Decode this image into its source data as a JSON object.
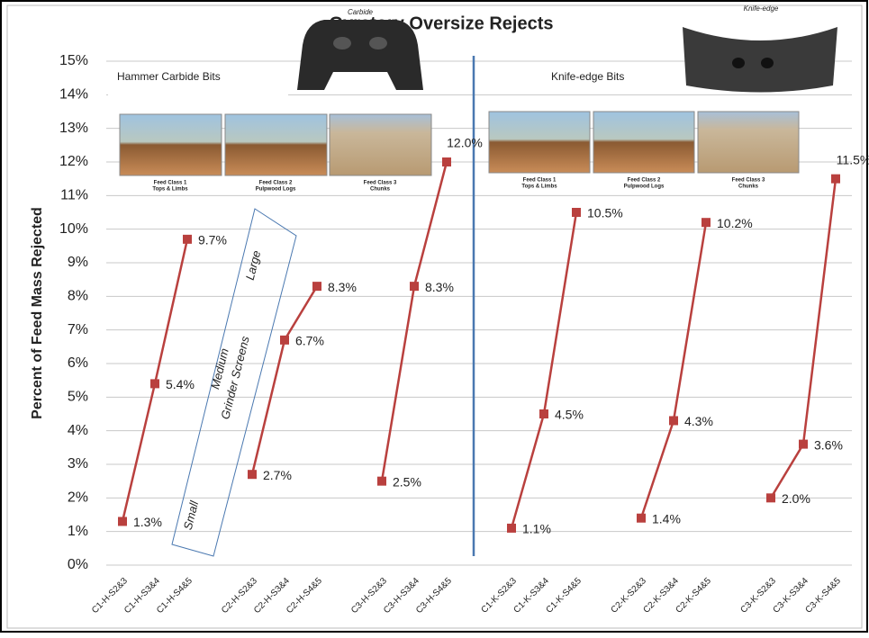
{
  "chart_data": {
    "type": "line",
    "title": "Gyratory Oversize Rejects",
    "y_label": "Percent of Feed Mass Rejected",
    "categories": [
      "C1-H-S2&3",
      "C1-H-S3&4",
      "C1-H-S4&5",
      null,
      "C2-H-S2&3",
      "C2-H-S3&4",
      "C2-H-S4&5",
      null,
      "C3-H-S2&3",
      "C3-H-S3&4",
      "C3-H-S4&5",
      null,
      "C1-K-S2&3",
      "C1-K-S3&4",
      "C1-K-S4&5",
      null,
      "C2-K-S2&3",
      "C2-K-S3&4",
      "C2-K-S4&5",
      null,
      "C3-K-S2&3",
      "C3-K-S3&4",
      "C3-K-S4&5"
    ],
    "series": [
      {
        "color": "#b9403e",
        "values": [
          1.3,
          5.4,
          9.7,
          null,
          2.7,
          6.7,
          8.3,
          null,
          2.5,
          8.3,
          12.0,
          null,
          1.1,
          4.5,
          10.5,
          null,
          1.4,
          4.3,
          10.2,
          null,
          2.0,
          3.6,
          11.5
        ],
        "value_labels": [
          "1.3%",
          "5.4%",
          "9.7%",
          null,
          "2.7%",
          "6.7%",
          "8.3%",
          null,
          "2.5%",
          "8.3%",
          "12.0%",
          null,
          "1.1%",
          "4.5%",
          "10.5%",
          null,
          "1.4%",
          "4.3%",
          "10.2%",
          null,
          "2.0%",
          "3.6%",
          "11.5%"
        ]
      }
    ],
    "ylim": [
      0,
      15
    ],
    "yticks": [
      {
        "value": 0,
        "label": "0%"
      },
      {
        "value": 1,
        "label": "1%"
      },
      {
        "value": 2,
        "label": "2%"
      },
      {
        "value": 3,
        "label": "3%"
      },
      {
        "value": 4,
        "label": "4%"
      },
      {
        "value": 5,
        "label": "5%"
      },
      {
        "value": 6,
        "label": "6%"
      },
      {
        "value": 7,
        "label": "7%"
      },
      {
        "value": 8,
        "label": "8%"
      },
      {
        "value": 9,
        "label": "9%"
      },
      {
        "value": 10,
        "label": "10%"
      },
      {
        "value": 11,
        "label": "11%"
      },
      {
        "value": 12,
        "label": "12%"
      },
      {
        "value": 13,
        "label": "13%"
      },
      {
        "value": 14,
        "label": "14%"
      },
      {
        "value": 15,
        "label": "15%"
      }
    ],
    "grid": true,
    "annotations": [
      "Hammer Carbide Bits",
      "Knife-edge Bits",
      "Carbide",
      "Knife-edge",
      "Feed Class 1",
      "Tops & Limbs",
      "Feed Class 2",
      "Pulpwood Logs",
      "Feed Class 3",
      "Chunks",
      "Large",
      "Medium",
      "Grinder Screens",
      "Small"
    ]
  }
}
